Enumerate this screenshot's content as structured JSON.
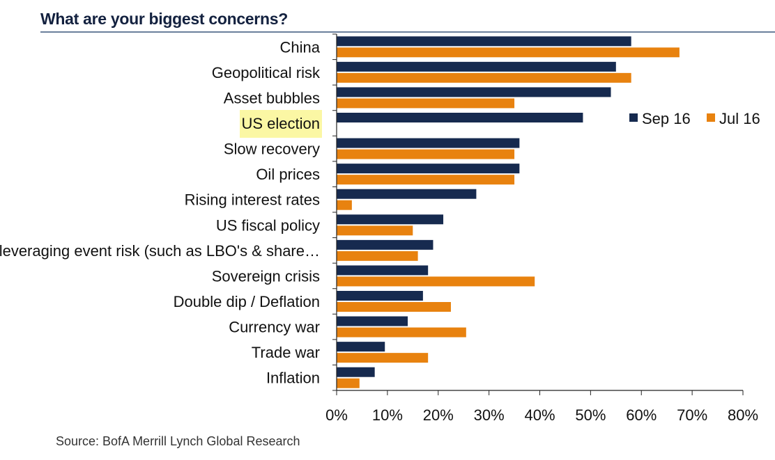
{
  "chart_data": {
    "type": "bar",
    "orientation": "horizontal",
    "title": "What are your biggest concerns?",
    "categories": [
      "China",
      "Geopolitical risk",
      "Asset bubbles",
      "US election",
      "Slow recovery",
      "Oil prices",
      "Rising interest rates",
      "US fiscal policy",
      "Releveraging event risk (such as LBO's & share…",
      "Sovereign crisis",
      "Double dip / Deflation",
      "Currency war",
      "Trade war",
      "Inflation"
    ],
    "highlighted_category": "US election",
    "series": [
      {
        "name": "Sep 16",
        "color": "#162a4f",
        "values": [
          58,
          55,
          54,
          48.5,
          36,
          36,
          27.5,
          21,
          19,
          18,
          17,
          14,
          9.5,
          7.5
        ]
      },
      {
        "name": "Jul 16",
        "color": "#e8820f",
        "values": [
          67.5,
          58,
          35,
          null,
          35,
          35,
          3,
          15,
          16,
          39,
          22.5,
          25.5,
          18,
          4.5
        ]
      }
    ],
    "xlim": [
      0,
      80
    ],
    "xticks": [
      "0%",
      "10%",
      "20%",
      "30%",
      "40%",
      "50%",
      "60%",
      "70%",
      "80%"
    ],
    "legend_position": "right",
    "source": "Source:  BofA Merrill Lynch Global Research"
  }
}
